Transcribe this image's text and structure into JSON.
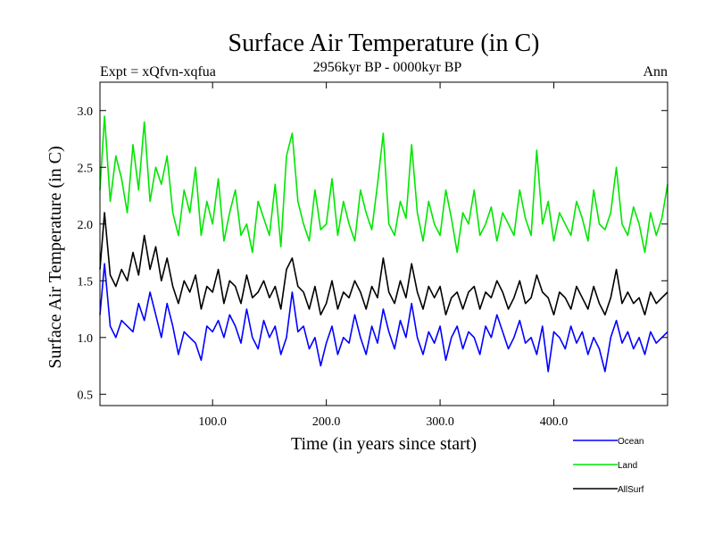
{
  "chart_data": {
    "type": "line",
    "title": "Surface Air Temperature (in C)",
    "subtitle_left": "Expt = xQfvn-xqfua",
    "subtitle_center": "2956kyr BP - 0000kyr BP",
    "subtitle_right": "Ann",
    "xlabel": "Time (in years since start)",
    "ylabel": "Surface Air Temperature (in C)",
    "xlim": [
      1,
      500
    ],
    "ylim": [
      0.4,
      3.25
    ],
    "xticks": [
      100,
      200,
      300,
      400
    ],
    "xtick_labels": [
      "100.0",
      "200.0",
      "300.0",
      "400.0"
    ],
    "yticks": [
      0.5,
      1.0,
      1.5,
      2.0,
      2.5,
      3.0
    ],
    "ytick_labels": [
      "0.5",
      "1.0",
      "1.5",
      "2.0",
      "2.5",
      "3.0"
    ],
    "legend_position": "bottom-right",
    "series": [
      {
        "name": "Ocean",
        "color": "#0000ff",
        "x": [
          1,
          5,
          10,
          15,
          20,
          25,
          30,
          35,
          40,
          45,
          50,
          55,
          60,
          65,
          70,
          75,
          80,
          85,
          90,
          95,
          100,
          105,
          110,
          115,
          120,
          125,
          130,
          135,
          140,
          145,
          150,
          155,
          160,
          165,
          170,
          175,
          180,
          185,
          190,
          195,
          200,
          205,
          210,
          215,
          220,
          225,
          230,
          235,
          240,
          245,
          250,
          255,
          260,
          265,
          270,
          275,
          280,
          285,
          290,
          295,
          300,
          305,
          310,
          315,
          320,
          325,
          330,
          335,
          340,
          345,
          350,
          355,
          360,
          365,
          370,
          375,
          380,
          385,
          390,
          395,
          400,
          405,
          410,
          415,
          420,
          425,
          430,
          435,
          440,
          445,
          450,
          455,
          460,
          465,
          470,
          475,
          480,
          485,
          490,
          495,
          500
        ],
        "values": [
          1.2,
          1.65,
          1.1,
          1.0,
          1.15,
          1.1,
          1.05,
          1.3,
          1.15,
          1.4,
          1.2,
          1.0,
          1.3,
          1.1,
          0.85,
          1.05,
          1.0,
          0.95,
          0.8,
          1.1,
          1.05,
          1.15,
          1.0,
          1.2,
          1.1,
          0.95,
          1.25,
          1.0,
          0.9,
          1.15,
          1.0,
          1.1,
          0.85,
          1.0,
          1.4,
          1.05,
          1.1,
          0.9,
          1.0,
          0.75,
          0.95,
          1.1,
          0.85,
          1.0,
          0.95,
          1.2,
          1.0,
          0.85,
          1.1,
          0.95,
          1.25,
          1.05,
          0.9,
          1.15,
          1.0,
          1.3,
          1.0,
          0.85,
          1.05,
          0.95,
          1.1,
          0.8,
          1.0,
          1.1,
          0.9,
          1.05,
          1.0,
          0.85,
          1.1,
          1.0,
          1.2,
          1.05,
          0.9,
          1.0,
          1.15,
          0.95,
          1.0,
          0.85,
          1.1,
          0.7,
          1.05,
          1.0,
          0.9,
          1.1,
          0.95,
          1.05,
          0.85,
          1.0,
          0.9,
          0.7,
          1.0,
          1.15,
          0.95,
          1.05,
          0.9,
          1.0,
          0.85,
          1.05,
          0.95,
          1.0,
          1.05
        ]
      },
      {
        "name": "Land",
        "color": "#00e600",
        "x": [
          1,
          5,
          10,
          15,
          20,
          25,
          30,
          35,
          40,
          45,
          50,
          55,
          60,
          65,
          70,
          75,
          80,
          85,
          90,
          95,
          100,
          105,
          110,
          115,
          120,
          125,
          130,
          135,
          140,
          145,
          150,
          155,
          160,
          165,
          170,
          175,
          180,
          185,
          190,
          195,
          200,
          205,
          210,
          215,
          220,
          225,
          230,
          235,
          240,
          245,
          250,
          255,
          260,
          265,
          270,
          275,
          280,
          285,
          290,
          295,
          300,
          305,
          310,
          315,
          320,
          325,
          330,
          335,
          340,
          345,
          350,
          355,
          360,
          365,
          370,
          375,
          380,
          385,
          390,
          395,
          400,
          405,
          410,
          415,
          420,
          425,
          430,
          435,
          440,
          445,
          450,
          455,
          460,
          465,
          470,
          475,
          480,
          485,
          490,
          495,
          500
        ],
        "values": [
          2.3,
          2.95,
          2.2,
          2.6,
          2.4,
          2.1,
          2.7,
          2.3,
          2.9,
          2.2,
          2.5,
          2.35,
          2.6,
          2.1,
          1.9,
          2.3,
          2.1,
          2.5,
          1.9,
          2.2,
          2.0,
          2.4,
          1.85,
          2.1,
          2.3,
          1.9,
          2.0,
          1.75,
          2.2,
          2.05,
          1.9,
          2.35,
          1.8,
          2.6,
          2.8,
          2.2,
          2.0,
          1.85,
          2.3,
          1.95,
          2.0,
          2.4,
          1.9,
          2.2,
          2.0,
          1.85,
          2.3,
          2.1,
          1.95,
          2.35,
          2.8,
          2.0,
          1.9,
          2.2,
          2.05,
          2.7,
          2.1,
          1.85,
          2.2,
          2.0,
          1.9,
          2.3,
          2.05,
          1.75,
          2.1,
          2.0,
          2.3,
          1.9,
          2.0,
          2.15,
          1.85,
          2.1,
          2.0,
          1.9,
          2.3,
          2.05,
          1.9,
          2.65,
          2.0,
          2.2,
          1.85,
          2.1,
          2.0,
          1.9,
          2.2,
          2.05,
          1.85,
          2.3,
          2.0,
          1.95,
          2.1,
          2.5,
          2.0,
          1.9,
          2.15,
          2.0,
          1.75,
          2.1,
          1.9,
          2.05,
          2.35
        ]
      },
      {
        "name": "AllSurf",
        "color": "#000000",
        "x": [
          1,
          5,
          10,
          15,
          20,
          25,
          30,
          35,
          40,
          45,
          50,
          55,
          60,
          65,
          70,
          75,
          80,
          85,
          90,
          95,
          100,
          105,
          110,
          115,
          120,
          125,
          130,
          135,
          140,
          145,
          150,
          155,
          160,
          165,
          170,
          175,
          180,
          185,
          190,
          195,
          200,
          205,
          210,
          215,
          220,
          225,
          230,
          235,
          240,
          245,
          250,
          255,
          260,
          265,
          270,
          275,
          280,
          285,
          290,
          295,
          300,
          305,
          310,
          315,
          320,
          325,
          330,
          335,
          340,
          345,
          350,
          355,
          360,
          365,
          370,
          375,
          380,
          385,
          390,
          395,
          400,
          405,
          410,
          415,
          420,
          425,
          430,
          435,
          440,
          445,
          450,
          455,
          460,
          465,
          470,
          475,
          480,
          485,
          490,
          495,
          500
        ],
        "values": [
          1.6,
          2.1,
          1.55,
          1.45,
          1.6,
          1.5,
          1.75,
          1.55,
          1.9,
          1.6,
          1.8,
          1.5,
          1.7,
          1.45,
          1.3,
          1.5,
          1.4,
          1.55,
          1.25,
          1.45,
          1.4,
          1.6,
          1.3,
          1.5,
          1.45,
          1.3,
          1.55,
          1.35,
          1.4,
          1.5,
          1.35,
          1.45,
          1.25,
          1.6,
          1.7,
          1.45,
          1.4,
          1.25,
          1.45,
          1.2,
          1.3,
          1.5,
          1.25,
          1.4,
          1.35,
          1.5,
          1.4,
          1.25,
          1.45,
          1.35,
          1.7,
          1.4,
          1.3,
          1.5,
          1.35,
          1.65,
          1.4,
          1.25,
          1.45,
          1.35,
          1.45,
          1.2,
          1.35,
          1.4,
          1.25,
          1.4,
          1.45,
          1.25,
          1.4,
          1.35,
          1.5,
          1.4,
          1.25,
          1.35,
          1.5,
          1.3,
          1.35,
          1.55,
          1.4,
          1.35,
          1.2,
          1.4,
          1.35,
          1.25,
          1.45,
          1.35,
          1.25,
          1.45,
          1.3,
          1.2,
          1.35,
          1.6,
          1.3,
          1.4,
          1.3,
          1.35,
          1.2,
          1.4,
          1.3,
          1.35,
          1.4
        ]
      }
    ]
  }
}
